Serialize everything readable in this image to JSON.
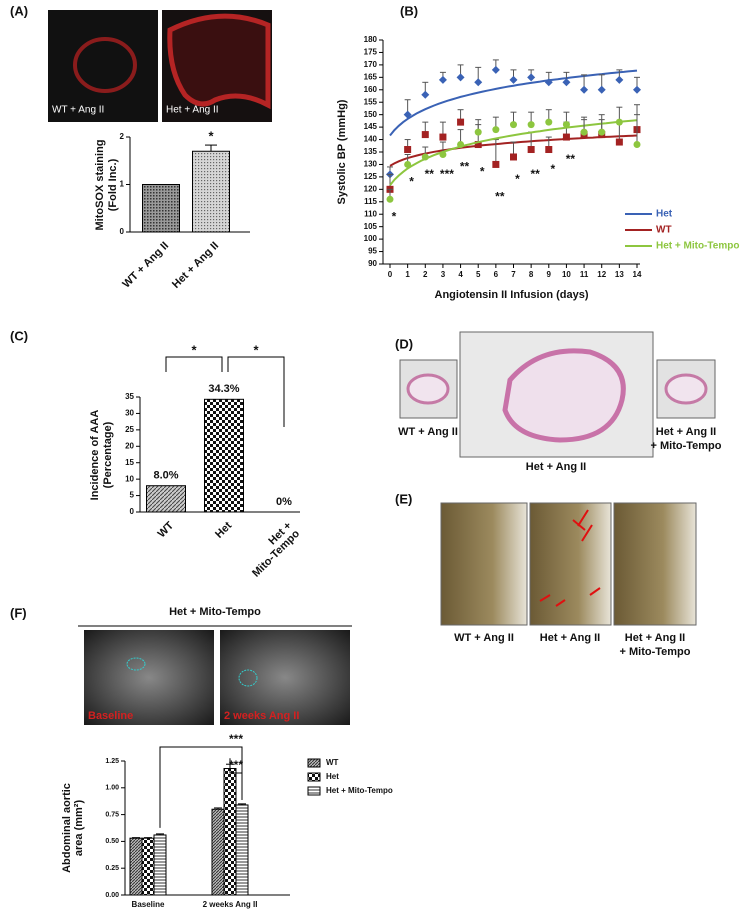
{
  "chart_data": [
    {
      "panel": "(A)",
      "type": "bar",
      "image_captions": [
        "WT + Ang II",
        "Het + Ang II"
      ],
      "ylabel": [
        "MitoSOX staining",
        "(Fold Inc.)"
      ],
      "categories": [
        "WT + Ang II",
        "Het + Ang II"
      ],
      "values": [
        1,
        1.7
      ],
      "errors": [
        0,
        0.13
      ],
      "annotations": [
        null,
        "*"
      ],
      "patterns": [
        "dots-dark",
        "dots-light"
      ],
      "ylim": [
        0,
        2
      ],
      "yticks": [
        0,
        1,
        2
      ]
    },
    {
      "panel": "(B)",
      "type": "line",
      "xlabel": "Angiotensin II Infusion (days)",
      "ylabel": "Systolic BP (mmHg)",
      "x": [
        0,
        1,
        2,
        3,
        4,
        5,
        6,
        7,
        8,
        9,
        10,
        11,
        12,
        13,
        14
      ],
      "series": [
        {
          "name": "Het",
          "color": "#3a62b5",
          "marker": "diamond",
          "values": [
            126,
            150,
            158,
            164,
            165,
            163,
            168,
            164,
            165,
            163,
            163,
            160,
            160,
            164,
            160
          ],
          "errors": [
            3,
            6,
            5,
            3,
            5,
            6,
            4,
            4,
            3,
            4,
            4,
            6,
            6,
            4,
            5
          ]
        },
        {
          "name": "WT",
          "color": "#a32222",
          "marker": "square",
          "values": [
            120,
            136,
            142,
            141,
            147,
            138,
            130,
            133,
            136,
            136,
            141,
            142,
            142,
            139,
            144
          ],
          "errors": [
            6,
            4,
            5,
            6,
            5,
            8,
            10,
            6,
            7,
            5,
            6,
            6,
            6,
            8,
            10
          ]
        },
        {
          "name": "Het + Mito-Tempo",
          "color": "#8dc63f",
          "marker": "circle",
          "values": [
            116,
            130,
            133,
            134,
            138,
            143,
            144,
            146,
            146,
            147,
            146,
            143,
            143,
            147,
            138
          ],
          "errors": [
            4,
            4,
            4,
            5,
            6,
            5,
            5,
            5,
            5,
            5,
            5,
            6,
            7,
            6,
            12
          ]
        }
      ],
      "significance": [
        "*",
        "*",
        "**",
        "***",
        "**",
        "*",
        "**",
        "*",
        "**",
        "*",
        "**",
        null,
        null,
        null,
        null
      ],
      "fit": "logarithmic",
      "legend": "lower right",
      "xlim": [
        0,
        14
      ],
      "xticks": [
        0,
        1,
        2,
        3,
        4,
        5,
        6,
        7,
        8,
        9,
        10,
        11,
        12,
        13,
        14
      ],
      "ylim": [
        90,
        180
      ],
      "yticks": [
        90,
        95,
        100,
        105,
        110,
        115,
        120,
        125,
        130,
        135,
        140,
        145,
        150,
        155,
        160,
        165,
        170,
        175,
        180
      ]
    },
    {
      "panel": "(C)",
      "type": "bar",
      "ylabel": [
        "Incidence of AAA",
        "(Percentage)"
      ],
      "categories": [
        "WT",
        "Het",
        [
          "Het +",
          "Mito-Tempo"
        ]
      ],
      "values": [
        8.0,
        34.3,
        0
      ],
      "value_labels": [
        "8.0%",
        "34.3%",
        "0%"
      ],
      "patterns": [
        "hatch",
        "checker",
        "hatch"
      ],
      "brackets": [
        "*",
        "*"
      ],
      "ylim": [
        0,
        35
      ],
      "yticks": [
        0,
        5,
        10,
        15,
        20,
        25,
        30,
        35
      ]
    },
    {
      "panel": "(F)",
      "type": "grouped_bar",
      "header": "Het + Mito-Tempo",
      "image_captions": [
        "Baseline",
        "2 weeks Ang II"
      ],
      "ylabel": [
        "Abdominal aortic",
        "area (mm²)"
      ],
      "categories": [
        "Baseline",
        "2 weeks Ang II"
      ],
      "series": [
        {
          "name": "WT",
          "pattern": "hatch-dense",
          "values": [
            0.53,
            0.8
          ],
          "errors": [
            0.005,
            0.012
          ]
        },
        {
          "name": "Het",
          "pattern": "checker",
          "values": [
            0.53,
            1.18
          ],
          "errors": [
            0.005,
            0.04
          ]
        },
        {
          "name": "Het + Mito-Tempo",
          "pattern": "lines",
          "values": [
            0.56,
            0.84
          ],
          "errors": [
            0.01,
            0.01
          ]
        }
      ],
      "brackets": [
        "***",
        "***"
      ],
      "ylim": [
        0,
        1.25
      ],
      "yticks": [
        {
          "value": 0,
          "label": "0.00"
        },
        {
          "value": 0.25,
          "label": "0.25"
        },
        {
          "value": 0.5,
          "label": "0.50"
        },
        {
          "value": 0.75,
          "label": "0.75"
        },
        {
          "value": 1,
          "label": "1.00"
        },
        {
          "value": 1.25,
          "label": "1.25"
        }
      ]
    }
  ],
  "figures": [
    {
      "panel": "(D)",
      "captions": [
        [
          "WT + Ang II"
        ],
        [
          "Het + Ang II"
        ],
        [
          "Het + Ang II",
          "+ Mito-Tempo"
        ]
      ]
    },
    {
      "panel": "(E)",
      "captions": [
        [
          "WT + Ang II"
        ],
        [
          "Het + Ang II"
        ],
        [
          "Het + Ang II",
          "+ Mito-Tempo"
        ]
      ]
    }
  ]
}
